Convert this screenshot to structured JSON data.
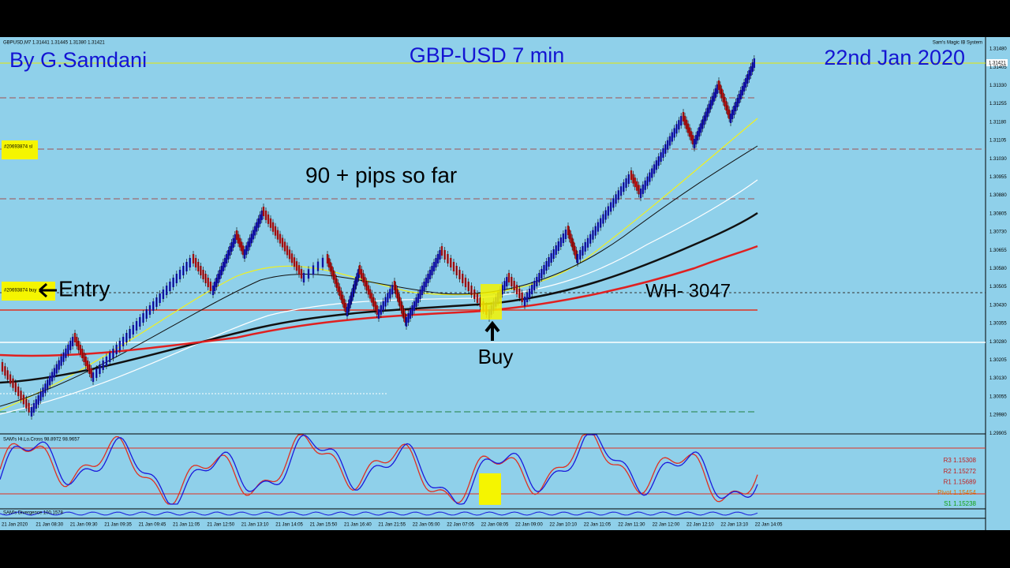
{
  "header": {
    "symbol_info": "GBPUSD,M7  1.31441 1.31445 1.31380 1.31421",
    "system_name": "Sam's Magic IB System"
  },
  "annotations": {
    "author": "By G.Samdani",
    "title": "GBP-USD 7 min",
    "date": "22nd Jan 2020",
    "pips": "90 + pips so far",
    "entry": "Entry",
    "wh": "WH- 3047",
    "buy": "Buy"
  },
  "orders": {
    "sl": "#20693874 sl",
    "buy": "#20693874 buy"
  },
  "price_axis": {
    "labels": [
      "1.31480",
      "1.31405",
      "1.31330",
      "1.31255",
      "1.31180",
      "1.31105",
      "1.31030",
      "1.30955",
      "1.30880",
      "1.30805",
      "1.30730",
      "1.30655",
      "1.30580",
      "1.30505",
      "1.30430",
      "1.30355",
      "1.30280",
      "1.30205",
      "1.30130",
      "1.30055",
      "1.29980",
      "1.29905"
    ],
    "current": "1.31421"
  },
  "indicators": {
    "hilo": "SAM's Hi.Lo.Cross 98.8972 98.9657",
    "divergence": "SAM's Divergence 100.1578",
    "pivots": [
      "R3 1.15308",
      "R2 1.15272",
      "R1 1.15689",
      "Pivot 1.15454",
      "S1 1.15238"
    ]
  },
  "time_axis": [
    "21 Jan 2020",
    "21 Jan 08:30",
    "21 Jan 09:30",
    "21 Jan 09:35",
    "21 Jan 09:45",
    "21 Jan 11:05",
    "21 Jan 12:50",
    "21 Jan 13:10",
    "21 Jan 14:05",
    "21 Jan 15:50",
    "21 Jan 16:40",
    "21 Jan 21:55",
    "22 Jan 05:00",
    "22 Jan 07:05",
    "22 Jan 08:05",
    "22 Jan 09:00",
    "22 Jan 10:10",
    "22 Jan 11:05",
    "22 Jan 11:30",
    "22 Jan 12:00",
    "22 Jan 12:10",
    "22 Jan 13:10",
    "22 Jan 14:05"
  ]
}
